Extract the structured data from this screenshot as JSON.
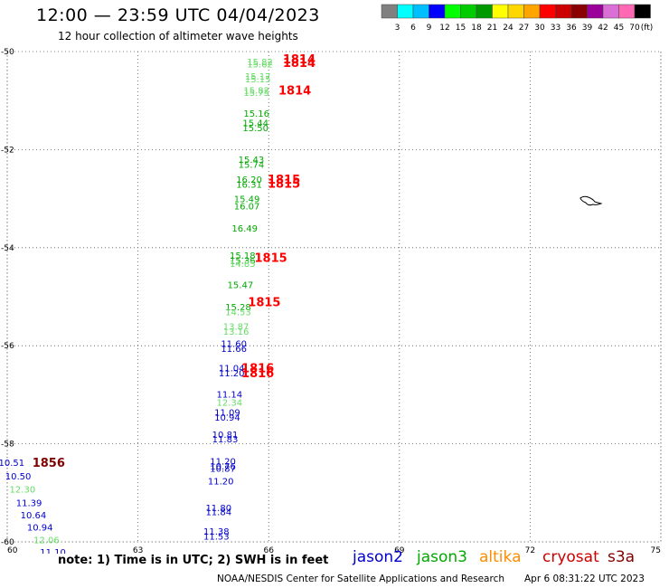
{
  "title": "12:00 — 23:59 UTC 04/04/2023",
  "subtitle": "12 hour collection of altimeter wave heights",
  "note": "note: 1) Time is in UTC; 2) SWH is in feet",
  "footer": "NOAA/NESDIS Center for Satellite Applications and Research",
  "footer_time": "Apr  6 08:31:22 UTC 2023",
  "satellites": [
    {
      "name": "jason2",
      "color": "#0000cc"
    },
    {
      "name": "jason3",
      "color": "#00aa00"
    },
    {
      "name": "altika",
      "color": "#ff8c00"
    },
    {
      "name": "cryosat",
      "color": "#cc0000"
    },
    {
      "name": "s3a",
      "color": "#800000"
    }
  ],
  "color_scale": {
    "unit": "(ft)",
    "labels": [
      "3",
      "6",
      "9",
      "12",
      "15",
      "18",
      "21",
      "24",
      "27",
      "30",
      "33",
      "36",
      "39",
      "42",
      "45",
      "70"
    ],
    "colors": [
      "#808080",
      "#00ffff",
      "#00bfff",
      "#0000ff",
      "#00ff00",
      "#00cc00",
      "#009900",
      "#ffff00",
      "#ffd700",
      "#ffa500",
      "#ff0000",
      "#cc0000",
      "#8b0000",
      "#9b009b",
      "#da70d6",
      "#ff69b4",
      "#000000"
    ]
  },
  "chart_data": {
    "type": "scatter",
    "title": "12:00 — 23:59 UTC 04/04/2023",
    "subtitle": "12 hour collection of altimeter wave heights",
    "xlim": [
      60,
      75
    ],
    "ylim": [
      -60,
      -50
    ],
    "x_ticks": [
      "60",
      "63",
      "66",
      "69",
      "72",
      "75"
    ],
    "y_ticks": [
      "-50",
      "-52",
      "-54",
      "-56",
      "-58",
      "-60"
    ],
    "grid": true,
    "wave_heights": [
      {
        "lon": 65.8,
        "lat": -50.2,
        "text": "15.82",
        "color": "#66dd66"
      },
      {
        "lon": 65.8,
        "lat": -50.25,
        "text": "15.62",
        "color": "#66dd66"
      },
      {
        "lon": 65.75,
        "lat": -50.5,
        "text": "15.17",
        "color": "#66dd66"
      },
      {
        "lon": 65.75,
        "lat": -50.55,
        "text": "15.15",
        "color": "#66dd66"
      },
      {
        "lon": 65.72,
        "lat": -50.78,
        "text": "15.82",
        "color": "#66dd66"
      },
      {
        "lon": 65.72,
        "lat": -50.83,
        "text": "15.75",
        "color": "#66dd66"
      },
      {
        "lon": 65.72,
        "lat": -51.25,
        "text": "15.16",
        "color": "#00aa00"
      },
      {
        "lon": 65.7,
        "lat": -51.45,
        "text": "15.44",
        "color": "#00aa00"
      },
      {
        "lon": 65.7,
        "lat": -51.55,
        "text": "15.50",
        "color": "#00aa00"
      },
      {
        "lon": 65.6,
        "lat": -52.2,
        "text": "15.43",
        "color": "#00aa00"
      },
      {
        "lon": 65.6,
        "lat": -52.3,
        "text": "15.74",
        "color": "#00aa00"
      },
      {
        "lon": 65.55,
        "lat": -52.6,
        "text": "16.20",
        "color": "#00aa00"
      },
      {
        "lon": 65.55,
        "lat": -52.7,
        "text": "16.31",
        "color": "#00aa00"
      },
      {
        "lon": 65.5,
        "lat": -53.0,
        "text": "15.49",
        "color": "#00aa00"
      },
      {
        "lon": 65.5,
        "lat": -53.15,
        "text": "16.07",
        "color": "#00aa00"
      },
      {
        "lon": 65.45,
        "lat": -53.6,
        "text": "16.49",
        "color": "#00aa00"
      },
      {
        "lon": 65.4,
        "lat": -54.15,
        "text": "15.18",
        "color": "#00aa00"
      },
      {
        "lon": 65.4,
        "lat": -54.25,
        "text": "15.36",
        "color": "#00aa00"
      },
      {
        "lon": 65.4,
        "lat": -54.32,
        "text": "14.85",
        "color": "#66dd66"
      },
      {
        "lon": 65.35,
        "lat": -54.75,
        "text": "15.47",
        "color": "#00aa00"
      },
      {
        "lon": 65.3,
        "lat": -55.2,
        "text": "15.28",
        "color": "#00aa00"
      },
      {
        "lon": 65.3,
        "lat": -55.3,
        "text": "14.53",
        "color": "#66dd66"
      },
      {
        "lon": 65.25,
        "lat": -55.6,
        "text": "13.87",
        "color": "#66dd66"
      },
      {
        "lon": 65.25,
        "lat": -55.7,
        "text": "13.16",
        "color": "#66dd66"
      },
      {
        "lon": 65.2,
        "lat": -55.95,
        "text": "11.60",
        "color": "#0000cc"
      },
      {
        "lon": 65.2,
        "lat": -56.05,
        "text": "11.66",
        "color": "#0000cc"
      },
      {
        "lon": 65.15,
        "lat": -56.45,
        "text": "11.04",
        "color": "#0000cc"
      },
      {
        "lon": 65.15,
        "lat": -56.55,
        "text": "11.20",
        "color": "#0000cc"
      },
      {
        "lon": 65.1,
        "lat": -56.98,
        "text": "11.14",
        "color": "#0000cc"
      },
      {
        "lon": 65.1,
        "lat": -57.15,
        "text": "12.34",
        "color": "#66dd66"
      },
      {
        "lon": 65.05,
        "lat": -57.35,
        "text": "11.09",
        "color": "#0000cc"
      },
      {
        "lon": 65.05,
        "lat": -57.45,
        "text": "10.94",
        "color": "#0000cc"
      },
      {
        "lon": 65.0,
        "lat": -57.8,
        "text": "10.81",
        "color": "#0000cc"
      },
      {
        "lon": 65.0,
        "lat": -57.9,
        "text": "11.83",
        "color": "#0000cc"
      },
      {
        "lon": 64.95,
        "lat": -58.35,
        "text": "11.20",
        "color": "#0000cc"
      },
      {
        "lon": 64.95,
        "lat": -58.45,
        "text": "10.76",
        "color": "#0000cc"
      },
      {
        "lon": 64.95,
        "lat": -58.5,
        "text": "10.87",
        "color": "#0000cc"
      },
      {
        "lon": 64.9,
        "lat": -58.75,
        "text": "11.20",
        "color": "#0000cc"
      },
      {
        "lon": 64.85,
        "lat": -59.3,
        "text": "11.80",
        "color": "#0000cc"
      },
      {
        "lon": 64.85,
        "lat": -59.38,
        "text": "11.84",
        "color": "#0000cc"
      },
      {
        "lon": 64.8,
        "lat": -59.78,
        "text": "11.38",
        "color": "#0000cc"
      },
      {
        "lon": 64.8,
        "lat": -59.88,
        "text": "11.53",
        "color": "#0000cc"
      },
      {
        "lon": 60.1,
        "lat": -58.38,
        "text": "10.51",
        "color": "#0000cc"
      },
      {
        "lon": 60.25,
        "lat": -58.65,
        "text": "10.50",
        "color": "#0000cc"
      },
      {
        "lon": 60.35,
        "lat": -58.92,
        "text": "12.30",
        "color": "#66dd66"
      },
      {
        "lon": 60.5,
        "lat": -59.2,
        "text": "11.39",
        "color": "#0000cc"
      },
      {
        "lon": 60.6,
        "lat": -59.45,
        "text": "10.64",
        "color": "#0000cc"
      },
      {
        "lon": 60.75,
        "lat": -59.7,
        "text": "10.94",
        "color": "#0000cc"
      },
      {
        "lon": 60.9,
        "lat": -59.95,
        "text": "12.06",
        "color": "#66dd66"
      },
      {
        "lon": 61.05,
        "lat": -60.2,
        "text": "11.10",
        "color": "#0000cc"
      }
    ],
    "pass_times": [
      {
        "lon": 66.7,
        "lat": -50.15,
        "text": "1814",
        "color": "#ff0000"
      },
      {
        "lon": 66.7,
        "lat": -50.22,
        "text": "1814",
        "color": "#ff0000"
      },
      {
        "lon": 66.6,
        "lat": -50.78,
        "text": "1814",
        "color": "#ff0000"
      },
      {
        "lon": 66.35,
        "lat": -52.6,
        "text": "1815",
        "color": "#ff0000"
      },
      {
        "lon": 66.35,
        "lat": -52.68,
        "text": "1815",
        "color": "#ff0000"
      },
      {
        "lon": 66.05,
        "lat": -54.2,
        "text": "1815",
        "color": "#ff0000"
      },
      {
        "lon": 65.9,
        "lat": -55.1,
        "text": "1815",
        "color": "#ff0000"
      },
      {
        "lon": 65.75,
        "lat": -56.45,
        "text": "1816",
        "color": "#ff0000"
      },
      {
        "lon": 65.75,
        "lat": -56.55,
        "text": "1816",
        "color": "#ff0000"
      },
      {
        "lon": 60.95,
        "lat": -58.38,
        "text": "1856",
        "color": "#800000"
      }
    ],
    "island": {
      "lon": 73.4,
      "lat": -53.1
    }
  }
}
